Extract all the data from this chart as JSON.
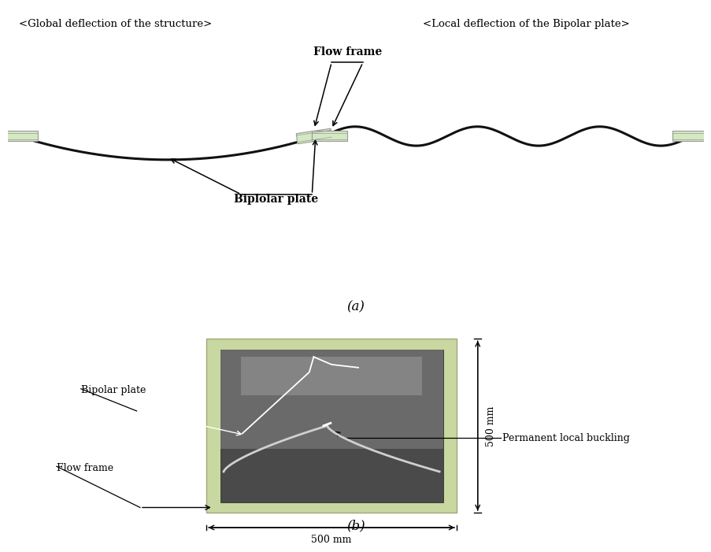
{
  "title_a_left": "<Global deflection of the structure>",
  "title_a_right": "<Local deflection of the Bipolar plate>",
  "label_flow_frame": "Flow frame",
  "label_bipolar_plate_a": "Biplolar plate",
  "label_bipolar_plate_b": "Bipolar plate",
  "label_flow_frame_b": "Flow frame",
  "label_perm_buckling": "Permanent local buckling",
  "label_500mm_h": "500 mm",
  "label_500mm_v": "500 mm",
  "caption_a": "(a)",
  "caption_b": "(b)",
  "bg_color": "#ffffff",
  "curve_color": "#111111",
  "frame_fill": "#d4e8c2",
  "frame_edge": "#999999"
}
